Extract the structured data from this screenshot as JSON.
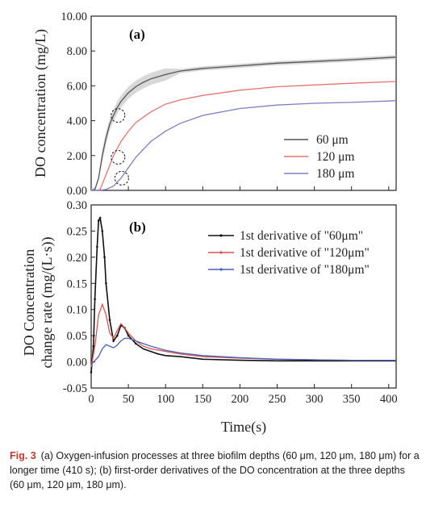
{
  "chart_data": [
    {
      "type": "line",
      "panel_label": "(a)",
      "ylabel": "DO concentration (mg/L)",
      "xlim": [
        0,
        410
      ],
      "ylim": [
        0,
        10
      ],
      "yticks": [
        "0.00",
        "2.00",
        "4.00",
        "6.00",
        "8.00",
        "10.00"
      ],
      "legend_position": "center-right",
      "series": [
        {
          "name": "60 μm",
          "color": "#555555",
          "x": [
            0,
            5,
            10,
            15,
            20,
            25,
            30,
            35,
            40,
            50,
            60,
            70,
            80,
            100,
            120,
            150,
            200,
            250,
            300,
            350,
            410
          ],
          "y": [
            0,
            0.05,
            0.7,
            2.0,
            3.0,
            3.8,
            4.3,
            4.75,
            5.1,
            5.6,
            5.95,
            6.2,
            6.4,
            6.65,
            6.85,
            7.0,
            7.15,
            7.3,
            7.4,
            7.5,
            7.65
          ]
        },
        {
          "name": "120 μm",
          "color": "#e57373",
          "x": [
            0,
            8,
            12,
            20,
            30,
            40,
            50,
            60,
            80,
            100,
            120,
            150,
            200,
            250,
            300,
            350,
            410
          ],
          "y": [
            0,
            0,
            0.05,
            0.9,
            2.0,
            2.8,
            3.4,
            3.9,
            4.5,
            4.95,
            5.2,
            5.45,
            5.75,
            5.95,
            6.05,
            6.15,
            6.25
          ]
        },
        {
          "name": "180 μm",
          "color": "#7e7ec0",
          "x": [
            0,
            10,
            20,
            30,
            40,
            50,
            60,
            80,
            100,
            120,
            150,
            200,
            250,
            300,
            350,
            410
          ],
          "y": [
            0,
            0,
            0.05,
            0.25,
            0.7,
            1.3,
            1.9,
            2.8,
            3.4,
            3.85,
            4.3,
            4.7,
            4.9,
            5.0,
            5.05,
            5.15
          ]
        }
      ],
      "annotations": [
        {
          "type": "circle",
          "x": 35,
          "y": 4.3
        },
        {
          "type": "circle",
          "x": 35,
          "y": 1.9
        },
        {
          "type": "circle",
          "x": 40,
          "y": 0.7
        }
      ]
    },
    {
      "type": "line",
      "panel_label": "(b)",
      "xlabel": "Time(s)",
      "ylabel": "DO Concentration change rate (mg/(L·s))",
      "ylabel_lines": [
        "DO Concentration",
        "change rate (mg/(L·s))"
      ],
      "xlim": [
        0,
        410
      ],
      "ylim": [
        -0.05,
        0.3
      ],
      "xticks": [
        "0",
        "50",
        "100",
        "150",
        "200",
        "250",
        "300",
        "350",
        "400"
      ],
      "yticks": [
        "-0.05",
        "0.00",
        "0.05",
        "0.10",
        "0.15",
        "0.20",
        "0.25",
        "0.30"
      ],
      "legend_position": "top-right",
      "series": [
        {
          "name": "1st derivative of \"60μm\"",
          "color": "#111111",
          "x": [
            0,
            3,
            5,
            8,
            10,
            12,
            15,
            18,
            20,
            25,
            30,
            35,
            40,
            45,
            50,
            60,
            70,
            80,
            90,
            100,
            120,
            150,
            200,
            250,
            300,
            350,
            410
          ],
          "y": [
            -0.02,
            0.03,
            0.12,
            0.22,
            0.27,
            0.275,
            0.25,
            0.2,
            0.15,
            0.08,
            0.04,
            0.05,
            0.07,
            0.065,
            0.05,
            0.035,
            0.025,
            0.02,
            0.015,
            0.012,
            0.01,
            0.005,
            0.003,
            0.002,
            0.002,
            0.002,
            0.002
          ]
        },
        {
          "name": "1st derivative of \"120μm\"",
          "color": "#d9534f",
          "x": [
            0,
            5,
            10,
            15,
            20,
            25,
            30,
            35,
            40,
            45,
            50,
            60,
            70,
            80,
            100,
            120,
            150,
            200,
            250,
            300,
            350,
            410
          ],
          "y": [
            -0.01,
            0.03,
            0.09,
            0.11,
            0.09,
            0.055,
            0.045,
            0.06,
            0.073,
            0.065,
            0.055,
            0.04,
            0.03,
            0.025,
            0.02,
            0.015,
            0.01,
            0.007,
            0.005,
            0.004,
            0.003,
            0.003
          ]
        },
        {
          "name": "1st derivative of \"180μm\"",
          "color": "#4a5fb5",
          "x": [
            0,
            10,
            15,
            20,
            25,
            30,
            35,
            40,
            45,
            50,
            60,
            70,
            80,
            100,
            120,
            150,
            200,
            250,
            300,
            350,
            410
          ],
          "y": [
            -0.005,
            0.01,
            0.025,
            0.033,
            0.03,
            0.027,
            0.032,
            0.04,
            0.045,
            0.045,
            0.04,
            0.035,
            0.03,
            0.022,
            0.017,
            0.012,
            0.008,
            0.005,
            0.004,
            0.003,
            0.003
          ]
        }
      ]
    }
  ],
  "caption": {
    "label": "Fig. 3",
    "text": "(a) Oxygen-infusion processes at three biofilm depths (60 μm, 120 μm, 180 μm) for a longer time (410 s); (b) first-order derivatives of the DO concentration at the three depths (60 μm, 120 μm, 180 μm)."
  }
}
